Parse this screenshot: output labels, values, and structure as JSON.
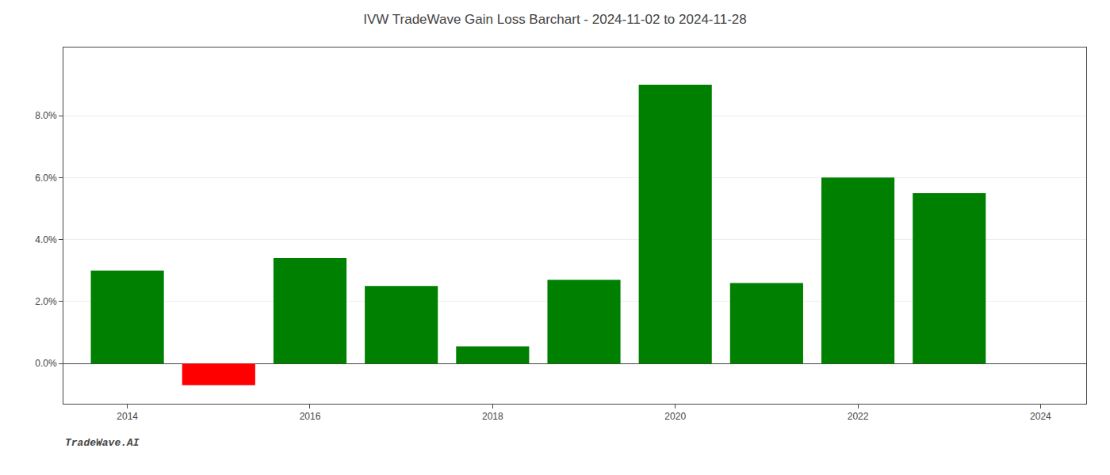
{
  "chart_data": {
    "type": "bar",
    "title": "IVW TradeWave Gain Loss Barchart - 2024-11-02 to 2024-11-28",
    "annotations": [
      "TradeWave.AI"
    ],
    "x": [
      2014,
      2015,
      2016,
      2017,
      2018,
      2019,
      2020,
      2021,
      2022,
      2023
    ],
    "values": [
      0.03,
      -0.007,
      0.034,
      0.025,
      0.0055,
      0.027,
      0.09,
      0.026,
      0.06,
      0.055
    ],
    "colors": [
      "#008000",
      "#ff0000",
      "#008000",
      "#008000",
      "#008000",
      "#008000",
      "#008000",
      "#008000",
      "#008000",
      "#008000"
    ],
    "xlim": [
      2013.3,
      2024.5
    ],
    "xticks": [
      2014,
      2016,
      2018,
      2020,
      2022,
      2024
    ],
    "ylim": [
      -0.013,
      0.102
    ],
    "yticks": [
      {
        "value": 0.0,
        "label": "0.0%"
      },
      {
        "value": 0.02,
        "label": "2.0%"
      },
      {
        "value": 0.04,
        "label": "4.0%"
      },
      {
        "value": 0.06,
        "label": "6.0%"
      },
      {
        "value": 0.08,
        "label": "8.0%"
      }
    ],
    "grid": true
  }
}
